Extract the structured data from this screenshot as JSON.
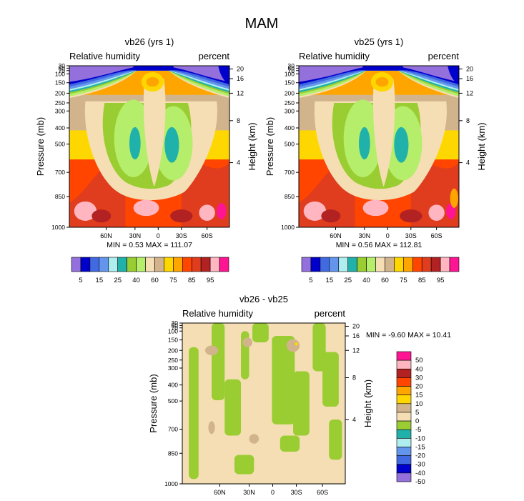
{
  "figure_title": "MAM",
  "colors": {
    "rh_scale": [
      "#9370db",
      "#0000cd",
      "#4169e1",
      "#6495ed",
      "#afeeee",
      "#20b2aa",
      "#9acd32",
      "#b4ee6a",
      "#f5deb3",
      "#d2b48c",
      "#ffd700",
      "#ffa500",
      "#ff4500",
      "#e03c1e",
      "#b22222",
      "#ffb6c1",
      "#ff1493"
    ],
    "diff_scale": [
      "#9370db",
      "#0000cd",
      "#4169e1",
      "#6495ed",
      "#afeeee",
      "#20b2aa",
      "#9acd32",
      "#f5deb3",
      "#d2b48c",
      "#ffd700",
      "#ffa500",
      "#ff4500",
      "#b22222",
      "#ffb6c1",
      "#ff1493"
    ]
  },
  "chart_data": [
    {
      "type": "heatmap",
      "title": "vb26 (yrs 1)",
      "left_label": "Relative humidity",
      "right_label": "percent",
      "xlabel": "",
      "ylabel": "Pressure (mb)",
      "ylabel_right": "Height (km)",
      "x_ticks": [
        "60N",
        "30N",
        "0",
        "30S",
        "60S"
      ],
      "y_ticks": [
        "30",
        "50",
        "70",
        "100",
        "150",
        "200",
        "250",
        "300",
        "400",
        "500",
        "700",
        "850",
        "1000"
      ],
      "height_ticks": [
        "20",
        "16",
        "12",
        "8",
        "4"
      ],
      "min_max": "MIN =   0.53  MAX = 111.07",
      "colorbar_labels": [
        "5",
        "15",
        "25",
        "40",
        "60",
        "75",
        "85",
        "95"
      ]
    },
    {
      "type": "heatmap",
      "title": "vb25 (yrs 1)",
      "left_label": "Relative humidity",
      "right_label": "percent",
      "xlabel": "",
      "ylabel": "Pressure (mb)",
      "ylabel_right": "Height (km)",
      "x_ticks": [
        "60N",
        "30N",
        "0",
        "30S",
        "60S"
      ],
      "y_ticks": [
        "30",
        "50",
        "70",
        "100",
        "150",
        "200",
        "250",
        "300",
        "400",
        "500",
        "700",
        "850",
        "1000"
      ],
      "height_ticks": [
        "20",
        "16",
        "12",
        "8",
        "4"
      ],
      "min_max": "MIN =   0.56  MAX = 112.81",
      "colorbar_labels": [
        "5",
        "15",
        "25",
        "40",
        "60",
        "75",
        "85",
        "95"
      ]
    },
    {
      "type": "heatmap",
      "title": "vb26 - vb25",
      "left_label": "Relative humidity",
      "right_label": "percent",
      "xlabel": "",
      "ylabel": "Pressure (mb)",
      "ylabel_right": "Height (km)",
      "x_ticks": [
        "60N",
        "30N",
        "0",
        "30S",
        "60S"
      ],
      "y_ticks": [
        "30",
        "50",
        "70",
        "100",
        "150",
        "200",
        "250",
        "300",
        "400",
        "500",
        "700",
        "850",
        "1000"
      ],
      "height_ticks": [
        "20",
        "16",
        "12",
        "8",
        "4"
      ],
      "min_max": "MIN =  -9.60  MAX =  10.41",
      "colorbar_labels": [
        "50",
        "40",
        "30",
        "20",
        "15",
        "10",
        "5",
        "0",
        "-5",
        "-10",
        "-15",
        "-20",
        "-30",
        "-40",
        "-50"
      ]
    }
  ]
}
